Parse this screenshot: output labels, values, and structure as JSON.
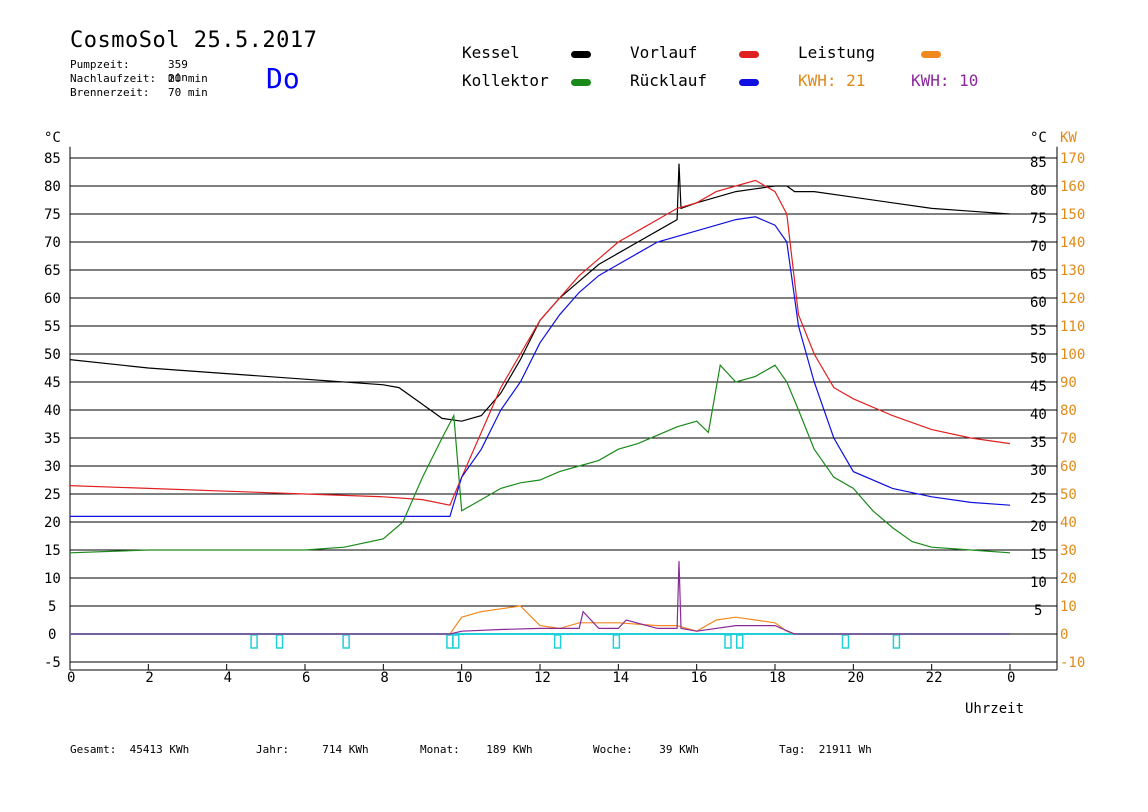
{
  "header": {
    "title": "CosmoSol 25.5.2017",
    "info": [
      {
        "label": "Pumpzeit:",
        "value": "359 min"
      },
      {
        "label": "Nachlaufzeit:",
        "value": "20 min"
      },
      {
        "label": "Brennerzeit:",
        "value": "70 min"
      }
    ],
    "day": "Do"
  },
  "legend": {
    "items": [
      {
        "label": "Kessel",
        "color": "#000000"
      },
      {
        "label": "Vorlauf",
        "color": "#e02020"
      },
      {
        "label": "Leistung",
        "color": "#f08a20"
      },
      {
        "label": "Kollektor",
        "color": "#1a8a1a"
      },
      {
        "label": "Rücklauf",
        "color": "#1010e0"
      }
    ],
    "kwh_left": {
      "label": "KWH: 21",
      "color": "#e08a1a"
    },
    "kwh_right": {
      "label": "KWH: 10",
      "color": "#8a2a9a"
    }
  },
  "axes": {
    "left_unit": "°C",
    "right_unit": "°C",
    "kw_unit": "KW",
    "x_label": "Uhrzeit",
    "left_ticks": [
      "85",
      "80",
      "75",
      "70",
      "65",
      "60",
      "55",
      "50",
      "45",
      "40",
      "35",
      "30",
      "25",
      "20",
      "15",
      "10",
      "5",
      "0",
      "-5"
    ],
    "right_ticks": [
      "85",
      "80",
      "75",
      "70",
      "65",
      "60",
      "55",
      "50",
      "45",
      "40",
      "35",
      "30",
      "25",
      "20",
      "15",
      "10",
      "5"
    ],
    "kw_ticks": [
      "170",
      "160",
      "150",
      "140",
      "130",
      "120",
      "110",
      "100",
      "90",
      "80",
      "70",
      "60",
      "50",
      "40",
      "30",
      "20",
      "10",
      "0",
      "-10"
    ],
    "x_ticks": [
      "0",
      "2",
      "4",
      "6",
      "8",
      "10",
      "12",
      "14",
      "16",
      "18",
      "20",
      "22",
      "0"
    ]
  },
  "footer": [
    {
      "label": "Gesamt:",
      "value": "45413 KWh"
    },
    {
      "label": "Jahr:",
      "value": "714 KWh"
    },
    {
      "label": "Monat:",
      "value": "189 KWh"
    },
    {
      "label": "Woche:",
      "value": "39 KWh"
    },
    {
      "label": "Tag:",
      "value": "21911 Wh"
    }
  ],
  "chart_data": {
    "type": "line",
    "title": "CosmoSol 25.5.2017",
    "xlabel": "Uhrzeit",
    "ylabel": "°C",
    "xlim": [
      0,
      24
    ],
    "ylim": [
      -5,
      87
    ],
    "grid": true,
    "series": [
      {
        "name": "Kessel",
        "color": "#000000",
        "x": [
          0,
          2,
          4,
          6,
          8,
          8.4,
          9,
          9.5,
          10,
          10.5,
          11,
          11.5,
          12,
          12.5,
          13,
          13.5,
          14,
          14.5,
          15,
          15.5,
          15.55,
          15.6,
          16,
          16.5,
          17,
          17.5,
          18,
          18.3,
          18.5,
          19,
          20,
          21,
          22,
          23,
          24
        ],
        "y": [
          49,
          47.5,
          46.5,
          45.5,
          44.5,
          44,
          41,
          38.5,
          38,
          39,
          43,
          49,
          56,
          60,
          63,
          66,
          68,
          70,
          72,
          74,
          84,
          76,
          77,
          78,
          79,
          79.5,
          80,
          80,
          79,
          79,
          78,
          77,
          76,
          75.5,
          75
        ]
      },
      {
        "name": "Vorlauf",
        "color": "#e02020",
        "x": [
          0,
          2,
          4,
          6,
          8,
          9,
          9.7,
          10,
          10.5,
          11,
          11.5,
          12,
          12.5,
          13,
          13.5,
          14,
          14.5,
          15,
          15.5,
          16,
          16.5,
          17,
          17.5,
          18,
          18.3,
          18.6,
          19,
          19.5,
          20,
          21,
          22,
          23,
          24
        ],
        "y": [
          26.5,
          26,
          25.5,
          25,
          24.5,
          24,
          23,
          28,
          36,
          44,
          50,
          56,
          60,
          64,
          67,
          70,
          72,
          74,
          76,
          77,
          79,
          80,
          81,
          79,
          75,
          57,
          50,
          44,
          42,
          39,
          36.5,
          35,
          34
        ]
      },
      {
        "name": "Rücklauf",
        "color": "#1010e0",
        "x": [
          0,
          2,
          4,
          6,
          8,
          9,
          9.7,
          10,
          10.5,
          11,
          11.5,
          12,
          12.5,
          13,
          13.5,
          14,
          14.5,
          15,
          15.5,
          16,
          16.5,
          17,
          17.5,
          18,
          18.3,
          18.6,
          19,
          19.5,
          20,
          21,
          22,
          23,
          24
        ],
        "y": [
          21,
          21,
          21,
          21,
          21,
          21,
          21,
          28,
          33,
          40,
          45,
          52,
          57,
          61,
          64,
          66,
          68,
          70,
          71,
          72,
          73,
          74,
          74.5,
          73,
          70,
          55,
          45,
          35,
          29,
          26,
          24.5,
          23.5,
          23
        ]
      },
      {
        "name": "Kollektor",
        "color": "#1a8a1a",
        "x": [
          0,
          2,
          4,
          6,
          7,
          8,
          8.5,
          9,
          9.5,
          9.8,
          10,
          10.5,
          11,
          11.5,
          12,
          12.5,
          13,
          13.5,
          14,
          14.5,
          15,
          15.5,
          16,
          16.3,
          16.6,
          17,
          17.5,
          18,
          18.3,
          18.6,
          19,
          19.5,
          20,
          20.5,
          21,
          21.5,
          22,
          23,
          24
        ],
        "y": [
          14.5,
          15,
          15,
          15,
          15.5,
          17,
          20,
          28,
          35,
          39,
          22,
          24,
          26,
          27,
          27.5,
          29,
          30,
          31,
          33,
          34,
          35.5,
          37,
          38,
          36,
          48,
          45,
          46,
          48,
          45,
          40,
          33,
          28,
          26,
          22,
          19,
          16.5,
          15.5,
          15,
          14.5
        ]
      },
      {
        "name": "Leistung",
        "color": "#f08a20",
        "x": [
          0,
          8,
          9,
          9.7,
          10,
          10.5,
          11,
          11.5,
          12,
          12.5,
          13,
          14,
          15,
          15.5,
          16,
          16.5,
          17,
          17.5,
          18,
          18.3,
          18.5,
          24
        ],
        "y": [
          0,
          0,
          0,
          0,
          3,
          4,
          4.5,
          5,
          1.5,
          1,
          2,
          2,
          1.5,
          1.5,
          0.5,
          2.5,
          3,
          2.5,
          2,
          0.5,
          0,
          0
        ]
      },
      {
        "name": "KWH 10",
        "color": "#8a2a9a",
        "x": [
          0,
          9.7,
          10,
          11,
          12,
          13,
          13.1,
          13.5,
          14,
          14.2,
          15,
          15.5,
          15.55,
          15.6,
          16,
          17,
          18,
          18.5,
          24
        ],
        "y": [
          0,
          0,
          0.5,
          0.8,
          1,
          1,
          4,
          1,
          1,
          2.5,
          1,
          1,
          13,
          1,
          0.5,
          1.5,
          1.5,
          0,
          0
        ]
      }
    ]
  }
}
